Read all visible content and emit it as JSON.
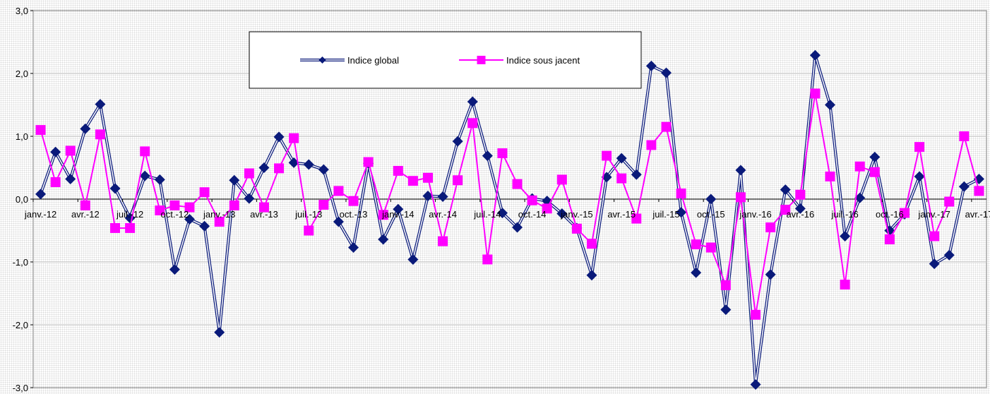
{
  "chart_data": {
    "type": "line",
    "title": "",
    "xlabel": "",
    "ylabel": "",
    "ylim": [
      -3,
      3
    ],
    "yticks": [
      "3,0",
      "2,0",
      "1,0",
      "0,0",
      "-1,0",
      "-2,0",
      "-3,0"
    ],
    "ytick_values": [
      3,
      2,
      1,
      0,
      -1,
      -2,
      -3
    ],
    "grid": true,
    "legend": "top-center",
    "x_start": "janv.-12",
    "x_labels": [
      "janv.-12",
      "avr.-12",
      "juil.-12",
      "oct.-12",
      "janv.-13",
      "avr.-13",
      "juil.-13",
      "oct.-13",
      "janv.-14",
      "avr.-14",
      "juil.-14",
      "oct.-14",
      "janv.-15",
      "avr.-15",
      "juil.-15",
      "oct.-15",
      "janv.-16",
      "avr.-16",
      "juil.-16",
      "oct.-16",
      "janv.-17",
      "avr.-17"
    ],
    "series": [
      {
        "name": "Indice global",
        "color": "#0a1a7a",
        "marker": "diamond",
        "values": [
          0.08,
          0.75,
          0.32,
          1.12,
          1.51,
          0.17,
          -0.3,
          0.37,
          0.31,
          -1.12,
          -0.32,
          -0.43,
          -2.12,
          0.3,
          0.01,
          0.5,
          0.99,
          0.58,
          0.55,
          0.47,
          -0.36,
          -0.77,
          0.57,
          -0.64,
          -0.16,
          -0.96,
          0.05,
          0.04,
          0.92,
          1.55,
          0.69,
          -0.22,
          -0.45,
          0.01,
          -0.03,
          -0.23,
          -0.46,
          -1.21,
          0.35,
          0.65,
          0.39,
          2.12,
          2.01,
          -0.21,
          -1.17,
          0.0,
          -1.76,
          0.46,
          -2.95,
          -1.2,
          0.15,
          -0.15,
          2.29,
          1.5,
          -0.59,
          0.02,
          0.67,
          -0.5,
          -0.24,
          0.36,
          -1.03,
          -0.89,
          0.2,
          0.32
        ]
      },
      {
        "name": "Indice sous jacent",
        "color": "#ff00ff",
        "marker": "square",
        "values": [
          1.1,
          0.27,
          0.77,
          -0.1,
          1.03,
          -0.46,
          -0.46,
          0.76,
          -0.18,
          -0.1,
          -0.13,
          0.11,
          -0.36,
          -0.1,
          0.41,
          -0.13,
          0.49,
          0.97,
          -0.5,
          -0.09,
          0.13,
          -0.03,
          0.59,
          -0.25,
          0.45,
          0.29,
          0.34,
          -0.67,
          0.3,
          1.21,
          -0.96,
          0.73,
          0.24,
          -0.02,
          -0.15,
          0.31,
          -0.47,
          -0.71,
          0.69,
          0.33,
          -0.31,
          0.86,
          1.15,
          0.09,
          -0.72,
          -0.77,
          -1.37,
          0.03,
          -1.84,
          -0.45,
          -0.17,
          0.07,
          1.68,
          0.36,
          -1.36,
          0.52,
          0.43,
          -0.64,
          -0.22,
          0.83,
          -0.59,
          -0.04,
          1.0,
          0.13
        ]
      }
    ]
  }
}
